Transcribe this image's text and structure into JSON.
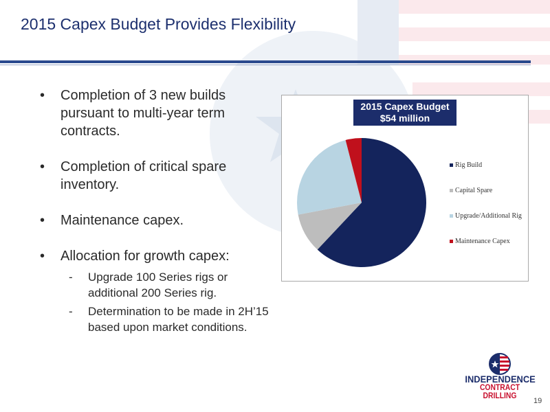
{
  "slide": {
    "title": "2015 Capex Budget Provides Flexibility",
    "page_number": "19"
  },
  "bullets": [
    {
      "text": "Completion of 3 new builds pursuant to multi-year term contracts."
    },
    {
      "text": "Completion of critical spare inventory."
    },
    {
      "text": "Maintenance capex."
    },
    {
      "text": "Allocation for growth capex:",
      "sub": [
        "Upgrade 100 Series rigs or additional 200 Series rig.",
        "Determination to be made in 2H’15 based upon market conditions."
      ]
    }
  ],
  "chart_data": {
    "type": "pie",
    "title": "2015 Capex Budget",
    "subtitle": "$54 million",
    "categories": [
      "Rig Build",
      "Capital Spare",
      "Upgrade/Additional Rig",
      "Maintenance Capex"
    ],
    "values": [
      62,
      10,
      24,
      4
    ],
    "colors": [
      "#14245c",
      "#bdbdbd",
      "#b8d4e2",
      "#c0101c"
    ],
    "legend_position": "right"
  },
  "logo": {
    "line1": "INDEPENDENCE",
    "line2": "CONTRACT DRILLING"
  }
}
